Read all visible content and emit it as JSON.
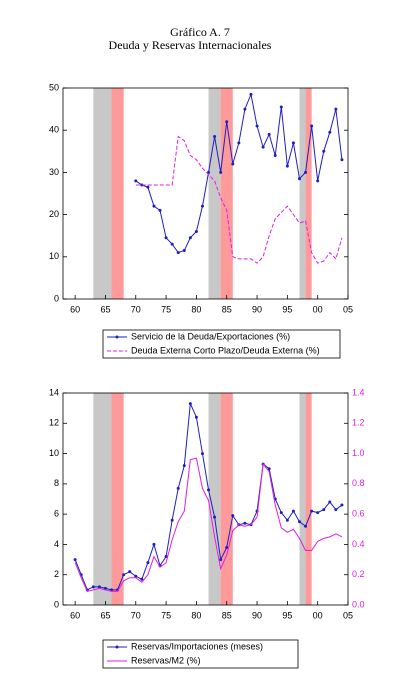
{
  "chart_data": [
    {
      "type": "line",
      "title": "Gráfico A. 7",
      "subtitle": "Deuda y Reservas Internacionales",
      "x": [
        1970,
        1971,
        1972,
        1973,
        1974,
        1975,
        1976,
        1977,
        1978,
        1979,
        1980,
        1981,
        1982,
        1983,
        1984,
        1985,
        1986,
        1987,
        1988,
        1989,
        1990,
        1991,
        1992,
        1993,
        1994,
        1995,
        1996,
        1997,
        1998,
        1999,
        2000,
        2001,
        2002,
        2003,
        2004
      ],
      "series": [
        {
          "name": "Servicio de la Deuda/Exportaciones (%)",
          "color": "#1f1fbf",
          "dash": false,
          "markers": true,
          "values": [
            28,
            27,
            26.5,
            22,
            21,
            14.5,
            13,
            11,
            11.5,
            14.5,
            16,
            22,
            30,
            38.5,
            30,
            42,
            32,
            37,
            45,
            48.5,
            41,
            36,
            39,
            34,
            45.5,
            31.5,
            37,
            28.5,
            30,
            41,
            28,
            35,
            39.5,
            45,
            33
          ]
        },
        {
          "name": "Deuda Externa Corto Plazo/Deuda Externa (%)",
          "color": "#e020e0",
          "dash": true,
          "markers": false,
          "values": [
            27,
            27,
            27,
            27,
            27,
            27,
            27,
            38.5,
            37.5,
            34,
            33,
            31,
            29.5,
            28,
            24,
            21,
            10,
            9.5,
            9.5,
            9.5,
            8.5,
            10,
            15,
            19,
            20.5,
            22,
            20,
            18,
            18.5,
            11,
            8.5,
            9,
            11,
            9.5,
            14.5
          ]
        }
      ],
      "xlim": [
        1958,
        2005
      ],
      "xticks": [
        {
          "value": 1960,
          "label": "60"
        },
        {
          "value": 1965,
          "label": "65"
        },
        {
          "value": 1970,
          "label": "70"
        },
        {
          "value": 1975,
          "label": "75"
        },
        {
          "value": 1980,
          "label": "80"
        },
        {
          "value": 1985,
          "label": "85"
        },
        {
          "value": 1990,
          "label": "90"
        },
        {
          "value": 1995,
          "label": "95"
        },
        {
          "value": 2000,
          "label": "00"
        },
        {
          "value": 2005,
          "label": "05"
        }
      ],
      "ylim": [
        0,
        50
      ],
      "yticks": [
        0,
        10,
        20,
        30,
        40,
        50
      ],
      "shaded_periods": [
        {
          "start": 1963,
          "end": 1966,
          "color": "#c8c8c8"
        },
        {
          "start": 1966,
          "end": 1968,
          "color": "#ff9a9a"
        },
        {
          "start": 1982,
          "end": 1984,
          "color": "#c8c8c8"
        },
        {
          "start": 1984,
          "end": 1986,
          "color": "#ff9a9a"
        },
        {
          "start": 1997,
          "end": 1998,
          "color": "#c8c8c8"
        },
        {
          "start": 1998,
          "end": 1999,
          "color": "#ff9a9a"
        }
      ]
    },
    {
      "type": "line",
      "x": [
        1960,
        1961,
        1962,
        1963,
        1964,
        1965,
        1966,
        1967,
        1968,
        1969,
        1970,
        1971,
        1972,
        1973,
        1974,
        1975,
        1976,
        1977,
        1978,
        1979,
        1980,
        1981,
        1982,
        1983,
        1984,
        1985,
        1986,
        1987,
        1988,
        1989,
        1990,
        1991,
        1992,
        1993,
        1994,
        1995,
        1996,
        1997,
        1998,
        1999,
        2000,
        2001,
        2002,
        2003,
        2004
      ],
      "series": [
        {
          "name": "Reservas/Importaciones (meses)",
          "color": "#1f1fbf",
          "dash": false,
          "markers": true,
          "values": [
            3,
            2,
            1,
            1.2,
            1.2,
            1.1,
            1,
            1,
            2,
            2.2,
            1.9,
            1.7,
            2.8,
            4,
            2.6,
            3.2,
            5.6,
            7.7,
            9.2,
            13.3,
            12.4,
            10,
            7.6,
            5.8,
            3,
            3.8,
            5.9,
            5.3,
            5.4,
            5.3,
            6.2,
            9.3,
            9,
            7,
            6.1,
            5.6,
            6.2,
            5.5,
            5.2,
            6.2,
            6.1,
            6.3,
            6.8,
            6.3,
            6.6
          ]
        },
        {
          "name": "Reservas/M2 (%)",
          "color": "#e020e0",
          "dash": false,
          "markers": false,
          "axis": "y2",
          "values": [
            0.28,
            0.18,
            0.09,
            0.1,
            0.11,
            0.1,
            0.09,
            0.09,
            0.16,
            0.18,
            0.18,
            0.15,
            0.2,
            0.32,
            0.25,
            0.28,
            0.43,
            0.55,
            0.62,
            0.96,
            0.97,
            0.77,
            0.69,
            0.45,
            0.24,
            0.33,
            0.49,
            0.53,
            0.52,
            0.53,
            0.58,
            0.93,
            0.88,
            0.66,
            0.51,
            0.48,
            0.5,
            0.44,
            0.36,
            0.36,
            0.42,
            0.44,
            0.45,
            0.47,
            0.45
          ]
        }
      ],
      "xlim": [
        1958,
        2005
      ],
      "xticks": [
        {
          "value": 1960,
          "label": "60"
        },
        {
          "value": 1965,
          "label": "65"
        },
        {
          "value": 1970,
          "label": "70"
        },
        {
          "value": 1975,
          "label": "75"
        },
        {
          "value": 1980,
          "label": "80"
        },
        {
          "value": 1985,
          "label": "85"
        },
        {
          "value": 1990,
          "label": "90"
        },
        {
          "value": 1995,
          "label": "95"
        },
        {
          "value": 2000,
          "label": "00"
        },
        {
          "value": 2005,
          "label": "05"
        }
      ],
      "ylim": [
        0,
        14
      ],
      "yticks": [
        0,
        2,
        4,
        6,
        8,
        10,
        12,
        14
      ],
      "y2lim": [
        0,
        1.4
      ],
      "y2ticks": [
        {
          "value": 0,
          "label": "0.0"
        },
        0.2,
        0.4,
        0.6,
        0.8,
        {
          "value": 1,
          "label": "1.0"
        },
        1.2,
        1.4
      ],
      "shaded_periods": [
        {
          "start": 1963,
          "end": 1966,
          "color": "#c8c8c8"
        },
        {
          "start": 1966,
          "end": 1968,
          "color": "#ff9a9a"
        },
        {
          "start": 1982,
          "end": 1984,
          "color": "#c8c8c8"
        },
        {
          "start": 1984,
          "end": 1986,
          "color": "#ff9a9a"
        },
        {
          "start": 1997,
          "end": 1998,
          "color": "#c8c8c8"
        },
        {
          "start": 1998,
          "end": 1999,
          "color": "#ff9a9a"
        }
      ]
    }
  ]
}
